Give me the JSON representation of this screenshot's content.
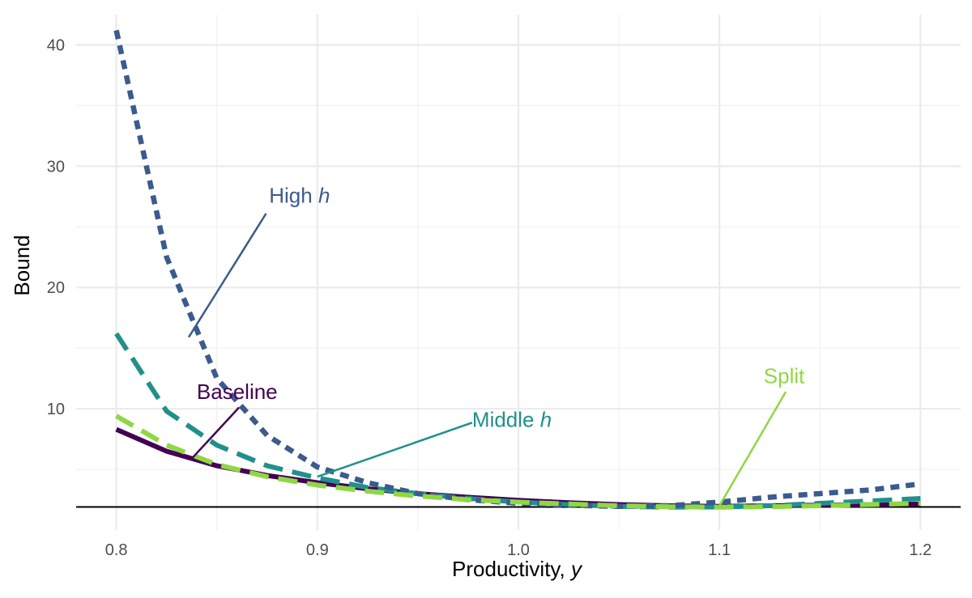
{
  "chart_data": {
    "type": "line",
    "xlabel": "Productivity, ",
    "xlabel_italic": "y",
    "ylabel": "Bound",
    "xlim": [
      0.78,
      1.22
    ],
    "ylim": [
      0,
      42.5
    ],
    "x_ticks": [
      0.8,
      0.9,
      1.0,
      1.1,
      1.2
    ],
    "x_tick_labels": [
      "0.8",
      "0.9",
      "1.0",
      "1.1",
      "1.2"
    ],
    "y_ticks": [
      10,
      20,
      30,
      40
    ],
    "y_tick_labels": [
      "10",
      "20",
      "30",
      "40"
    ],
    "grid": true,
    "reference_line_y": 1.9,
    "x": [
      0.8,
      0.825,
      0.85,
      0.875,
      0.9,
      0.925,
      0.95,
      0.975,
      1.0,
      1.025,
      1.05,
      1.075,
      1.1,
      1.125,
      1.15,
      1.175,
      1.2
    ],
    "series": [
      {
        "name": "Baseline",
        "color": "#440154",
        "dash": "solid",
        "values": [
          8.3,
          6.5,
          5.3,
          4.5,
          3.9,
          3.4,
          3.0,
          2.7,
          2.45,
          2.25,
          2.1,
          2.0,
          1.95,
          2.0,
          2.05,
          2.1,
          2.15
        ]
      },
      {
        "name": "Middle h",
        "color": "#21908C",
        "dash": "long",
        "values": [
          16.2,
          9.8,
          7.0,
          5.3,
          4.3,
          3.5,
          3.0,
          2.6,
          2.3,
          2.1,
          1.95,
          1.88,
          1.9,
          2.0,
          2.2,
          2.4,
          2.6
        ]
      },
      {
        "name": "High h",
        "color": "#3B5B8C",
        "dash": "short",
        "values": [
          41.2,
          22.5,
          12.5,
          7.8,
          5.2,
          3.9,
          3.0,
          2.5,
          2.2,
          2.05,
          1.95,
          2.0,
          2.3,
          2.7,
          3.0,
          3.3,
          3.8
        ]
      },
      {
        "name": "Split",
        "color": "#8FD744",
        "dash": "long",
        "values": [
          9.4,
          7.0,
          5.4,
          4.4,
          3.7,
          3.2,
          2.8,
          2.5,
          2.3,
          2.15,
          2.0,
          1.92,
          1.88,
          1.92,
          2.0,
          2.1,
          2.2
        ]
      }
    ],
    "annotations": [
      {
        "series": "High h",
        "text": "High ",
        "italic": "h",
        "label_at": [
          0.876,
          27.0
        ],
        "line_from": [
          0.8745,
          26.1
        ],
        "line_to": [
          0.836,
          15.9
        ]
      },
      {
        "series": "Baseline",
        "text": "Baseline",
        "italic": "",
        "label_at": [
          0.84,
          10.8
        ],
        "line_from": [
          0.861,
          10.1
        ],
        "line_to": [
          0.837,
          5.8
        ]
      },
      {
        "series": "Middle h",
        "text": "Middle ",
        "italic": "h",
        "label_at": [
          0.977,
          8.5
        ],
        "line_from": [
          0.977,
          8.85
        ],
        "line_to": [
          0.9,
          4.4
        ]
      },
      {
        "series": "Split",
        "text": "Split",
        "italic": "",
        "label_at": [
          1.122,
          12.1
        ],
        "line_from": [
          1.133,
          11.4
        ],
        "line_to": [
          1.1,
          2.0
        ]
      }
    ]
  }
}
